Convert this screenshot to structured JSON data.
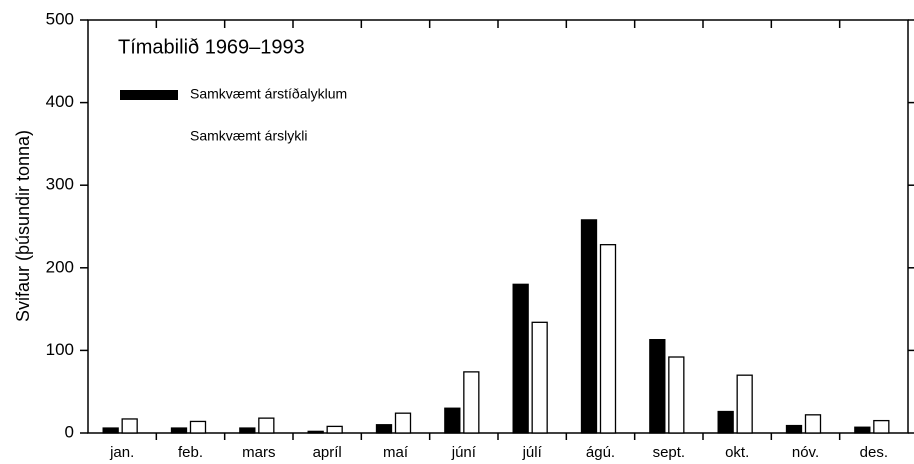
{
  "chart_data": {
    "type": "bar",
    "title": "Tímabilið 1969–1993",
    "y_label": "Svifaur (þúsundir tonna)",
    "categories": [
      "jan.",
      "feb.",
      "mars",
      "apríl",
      "maí",
      "júní",
      "júlí",
      "ágú.",
      "sept.",
      "okt.",
      "nóv.",
      "des."
    ],
    "series": [
      {
        "name": "Samkvæmt árstíðalyklum",
        "color": "#000000",
        "values": [
          6,
          6,
          6,
          2,
          10,
          30,
          180,
          258,
          113,
          26,
          9,
          7
        ]
      },
      {
        "name": "Samkvæmt árslykli",
        "color": "#ffffff",
        "values": [
          17,
          14,
          18,
          8,
          24,
          74,
          134,
          228,
          92,
          70,
          22,
          15
        ]
      }
    ],
    "ylim": [
      0,
      500
    ],
    "yticks": [
      0,
      100,
      200,
      300,
      400,
      500
    ]
  }
}
